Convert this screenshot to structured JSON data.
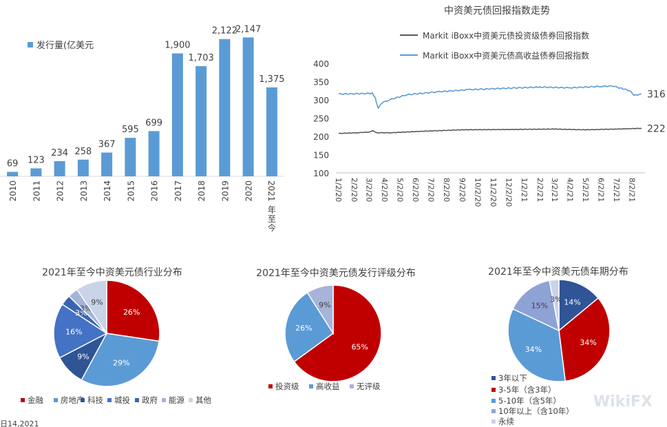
{
  "colors": {
    "bar": "#5B9BD5",
    "ig_line": "#595959",
    "hy_line": "#5B9BD5",
    "sector": [
      "#C00000",
      "#5B9BD5",
      "#2F5597",
      "#4472C4",
      "#3864B4",
      "#A5B4D8",
      "#C9D3EA"
    ],
    "rating": [
      "#C00000",
      "#5B9BD5",
      "#A5B4D8"
    ],
    "tenor": [
      "#2F5597",
      "#C00000",
      "#5B9BD5",
      "#8EA2D6",
      "#C9D3EA"
    ]
  },
  "chart_data": [
    {
      "type": "bar",
      "legend": "发行量(亿美元",
      "categories": [
        "2010",
        "2011",
        "2012",
        "2013",
        "2014",
        "2015",
        "2016",
        "2017",
        "2018",
        "2019",
        "2020",
        "2021年至今"
      ],
      "values": [
        69,
        123,
        234,
        258,
        367,
        595,
        699,
        1900,
        1703,
        2122,
        2147,
        1375
      ],
      "value_labels": [
        "69",
        "123",
        "234",
        "258",
        "367",
        "595",
        "699",
        "1,900",
        "1,703",
        "2,122",
        "2,147",
        "1,375"
      ],
      "ylim": [
        0,
        2300
      ]
    },
    {
      "type": "line",
      "title": "中资美元债回报指数走势",
      "series": [
        {
          "name": "Markit iBoxx中资美元债投资级债券回报指数",
          "end_label": "222",
          "x": [
            "2020-01-02",
            "2020-02-10",
            "2020-03-01",
            "2020-03-10",
            "2020-03-18",
            "2020-03-25",
            "2020-04-15",
            "2020-06-15",
            "2020-09-01",
            "2020-12-15",
            "2021-03-01",
            "2021-05-01",
            "2021-07-01",
            "2021-08-20"
          ],
          "values": [
            208,
            210,
            212,
            215,
            209,
            210,
            210,
            214,
            218,
            219,
            220,
            218,
            220,
            222
          ]
        },
        {
          "name": "Markit iBoxx中资美元债高收益债券回报指数",
          "end_label": "316",
          "x": [
            "2020-01-02",
            "2020-02-15",
            "2020-03-08",
            "2020-03-14",
            "2020-03-18",
            "2020-03-20",
            "2020-03-25",
            "2020-04-10",
            "2020-05-15",
            "2020-07-15",
            "2020-09-15",
            "2020-12-01",
            "2021-02-01",
            "2021-04-01",
            "2021-06-01",
            "2021-06-25",
            "2021-07-15",
            "2021-07-28",
            "2021-08-05",
            "2021-08-20"
          ],
          "values": [
            316,
            317,
            318,
            305,
            285,
            278,
            290,
            300,
            314,
            322,
            328,
            332,
            335,
            333,
            337,
            338,
            330,
            325,
            312,
            316
          ]
        }
      ],
      "x_ticks": [
        "1/2/20",
        "2/2/20",
        "3/2/20",
        "4/2/20",
        "5/2/20",
        "6/2/20",
        "7/2/20",
        "8/2/20",
        "9/2/20",
        "10/2/20",
        "11/2/20",
        "12/2/20",
        "1/2/21",
        "2/2/21",
        "3/2/21",
        "4/2/21",
        "5/2/21",
        "6/2/21",
        "7/2/21",
        "8/2/21"
      ],
      "y_ticks": [
        "100",
        "150",
        "200",
        "250",
        "300",
        "350",
        "400"
      ],
      "ylim": [
        100,
        400
      ]
    },
    {
      "type": "pie",
      "title": "2021年至今中资美元债行业分布",
      "categories": [
        "金融",
        "房地产",
        "科技",
        "城投",
        "政府",
        "能源",
        "其他"
      ],
      "values": [
        26,
        29,
        9,
        16,
        3,
        3,
        9
      ],
      "labels": [
        "26%",
        "29%",
        "9%",
        "16%",
        "3%",
        "3%",
        "9%"
      ]
    },
    {
      "type": "pie",
      "title": "2021年至今中资美元债发行评级分布",
      "categories": [
        "投资级",
        "高收益",
        "无评级"
      ],
      "values": [
        65,
        26,
        9
      ],
      "labels": [
        "65%",
        "26%",
        "9%"
      ]
    },
    {
      "type": "pie",
      "title": "2021年至今中资美元债年期分布",
      "categories": [
        "3年以下",
        "3-5年（含3年）",
        "5-10年（含5年）",
        "10年以上（含10年）",
        "永续"
      ],
      "values": [
        14,
        34,
        34,
        15,
        3
      ],
      "labels": [
        "14%",
        "34%",
        "34%",
        "15%",
        "3%"
      ]
    }
  ],
  "footer": {
    "source_fragment": "日14,2021",
    "watermark": "WikiFX"
  }
}
